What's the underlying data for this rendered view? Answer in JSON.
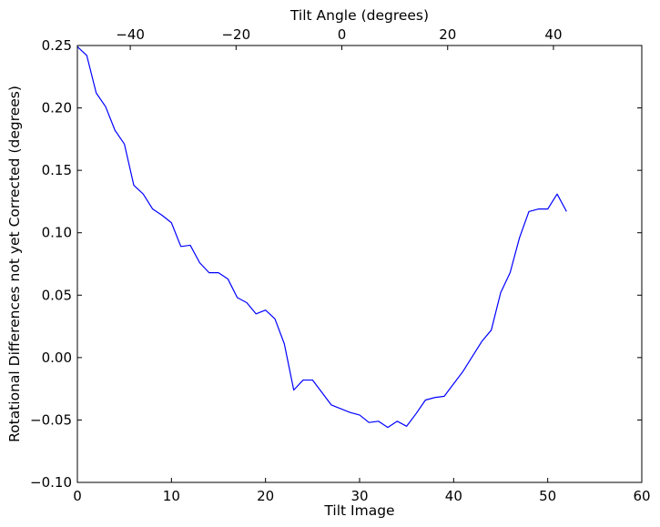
{
  "chart_data": {
    "type": "line",
    "xlabel": "Tilt Image",
    "ylabel": "Rotational Differences not yet Corrected (degrees)",
    "top_xlabel": "Tilt Angle (degrees)",
    "xlim": [
      0,
      60
    ],
    "ylim": [
      -0.1,
      0.25
    ],
    "top_xlim": [
      -50,
      56.7
    ],
    "x_ticks": [
      0,
      10,
      20,
      30,
      40,
      50,
      60
    ],
    "x_tick_labels": [
      "0",
      "10",
      "20",
      "30",
      "40",
      "50",
      "60"
    ],
    "y_ticks": [
      0.25,
      0.2,
      0.15,
      0.1,
      0.05,
      0.0,
      -0.05,
      -0.1
    ],
    "y_tick_labels": [
      "0.25",
      "0.20",
      "0.15",
      "0.10",
      "0.05",
      "0.00",
      "−0.05",
      "−0.10"
    ],
    "top_ticks": [
      -40,
      -20,
      0,
      20,
      40
    ],
    "top_tick_labels": [
      "−40",
      "−20",
      "0",
      "20",
      "40"
    ],
    "grid": false,
    "series": [
      {
        "color": "#0000ff",
        "x": [
          0,
          1,
          2,
          3,
          4,
          5,
          6,
          7,
          8,
          9,
          10,
          11,
          12,
          13,
          14,
          15,
          16,
          17,
          18,
          19,
          20,
          21,
          22,
          23,
          24,
          25,
          26,
          27,
          28,
          29,
          30,
          31,
          32,
          33,
          34,
          35,
          36,
          37,
          38,
          39,
          40,
          41,
          42,
          43,
          44,
          45,
          46,
          47,
          48,
          49,
          50,
          51,
          52
        ],
        "y": [
          0.249,
          0.242,
          0.212,
          0.201,
          0.182,
          0.171,
          0.138,
          0.131,
          0.119,
          0.114,
          0.108,
          0.089,
          0.09,
          0.076,
          0.068,
          0.068,
          0.063,
          0.048,
          0.044,
          0.035,
          0.038,
          0.031,
          0.011,
          -0.026,
          -0.018,
          -0.018,
          -0.028,
          -0.038,
          -0.041,
          -0.044,
          -0.046,
          -0.052,
          -0.051,
          -0.056,
          -0.051,
          -0.055,
          -0.045,
          -0.034,
          -0.032,
          -0.031,
          -0.021,
          -0.011,
          0.001,
          0.013,
          0.022,
          0.052,
          0.068,
          0.096,
          0.117,
          0.119,
          0.119,
          0.131,
          0.117
        ]
      }
    ]
  }
}
